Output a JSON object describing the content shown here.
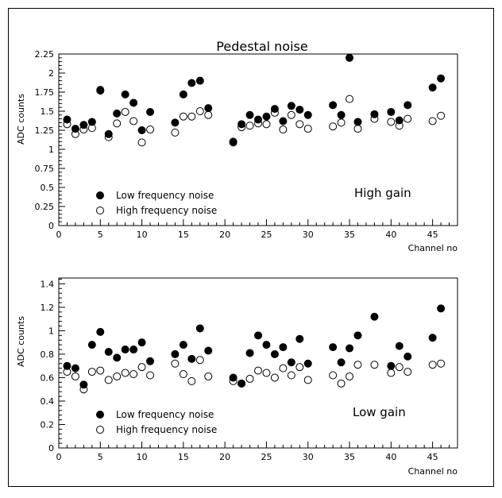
{
  "title": "Pedestal noise",
  "chart_data": [
    {
      "type": "scatter",
      "title": "Pedestal noise",
      "xlabel": "Channel no",
      "ylabel": "ADC counts",
      "xlim": [
        0,
        48
      ],
      "ylim": [
        0,
        2.25
      ],
      "xticks": [
        0,
        5,
        10,
        15,
        20,
        25,
        30,
        35,
        40,
        45
      ],
      "xtick_labels": [
        "0",
        "5",
        "10",
        "15",
        "20",
        "25",
        "30",
        "35",
        "40",
        "45"
      ],
      "yticks": [
        0,
        0.25,
        0.5,
        0.75,
        1,
        1.25,
        1.5,
        1.75,
        2,
        2.25
      ],
      "ytick_labels": [
        "0",
        "0.25",
        "0.5",
        "0.75",
        "1",
        "1.25",
        "1.5",
        "1.75",
        "2",
        "2.25"
      ],
      "annotation": "High gain",
      "legend_position": "bottom-left",
      "series": [
        {
          "name": "Low frequency noise",
          "marker": "filled-circle",
          "x": [
            1,
            2,
            3,
            4,
            5,
            6,
            7,
            8,
            9,
            10,
            11,
            14,
            15,
            16,
            17,
            18,
            21,
            22,
            23,
            24,
            25,
            26,
            27,
            28,
            29,
            30,
            33,
            34,
            35,
            36,
            38,
            40,
            41,
            42,
            45,
            46
          ],
          "y": [
            1.39,
            1.27,
            1.32,
            1.36,
            1.78,
            1.2,
            1.47,
            1.72,
            1.61,
            1.25,
            1.49,
            1.35,
            1.72,
            1.87,
            1.9,
            1.54,
            1.1,
            1.33,
            1.45,
            1.39,
            1.43,
            1.53,
            1.37,
            1.57,
            1.52,
            1.45,
            1.58,
            1.45,
            2.2,
            1.36,
            1.46,
            1.49,
            1.38,
            1.58,
            1.81,
            1.93
          ]
        },
        {
          "name": "High frequency noise",
          "marker": "open-circle",
          "x": [
            1,
            2,
            3,
            4,
            5,
            6,
            7,
            8,
            9,
            10,
            11,
            14,
            15,
            16,
            17,
            18,
            21,
            22,
            23,
            24,
            25,
            26,
            27,
            28,
            29,
            30,
            33,
            34,
            35,
            36,
            38,
            40,
            41,
            42,
            45,
            46
          ],
          "y": [
            1.33,
            1.2,
            1.26,
            1.28,
            1.77,
            1.16,
            1.34,
            1.49,
            1.37,
            1.09,
            1.26,
            1.22,
            1.43,
            1.43,
            1.5,
            1.45,
            1.09,
            1.29,
            1.31,
            1.34,
            1.33,
            1.48,
            1.26,
            1.45,
            1.33,
            1.27,
            1.3,
            1.35,
            1.66,
            1.27,
            1.4,
            1.36,
            1.31,
            1.4,
            1.37,
            1.44
          ]
        }
      ]
    },
    {
      "type": "scatter",
      "title": "",
      "xlabel": "Channel no",
      "ylabel": "ADC counts",
      "xlim": [
        0,
        48
      ],
      "ylim": [
        0,
        1.45
      ],
      "xticks": [
        0,
        5,
        10,
        15,
        20,
        25,
        30,
        35,
        40,
        45
      ],
      "xtick_labels": [
        "0",
        "5",
        "10",
        "15",
        "20",
        "25",
        "30",
        "35",
        "40",
        "45"
      ],
      "yticks": [
        0,
        0.2,
        0.4,
        0.6,
        0.8,
        1,
        1.2,
        1.4
      ],
      "ytick_labels": [
        "0",
        "0.2",
        "0.4",
        "0.6",
        "0.8",
        "1",
        "1.2",
        "1.4"
      ],
      "annotation": "Low gain",
      "legend_position": "bottom-left",
      "series": [
        {
          "name": "Low frequency noise",
          "marker": "filled-circle",
          "x": [
            1,
            2,
            3,
            4,
            5,
            6,
            7,
            8,
            9,
            10,
            11,
            14,
            15,
            16,
            17,
            18,
            21,
            22,
            23,
            24,
            25,
            26,
            27,
            28,
            29,
            30,
            33,
            34,
            35,
            36,
            38,
            40,
            41,
            42,
            45,
            46
          ],
          "y": [
            0.7,
            0.68,
            0.54,
            0.88,
            0.99,
            0.82,
            0.77,
            0.84,
            0.84,
            0.9,
            0.74,
            0.8,
            0.88,
            0.76,
            1.02,
            0.83,
            0.6,
            0.55,
            0.81,
            0.96,
            0.88,
            0.8,
            0.86,
            0.73,
            0.93,
            0.72,
            0.86,
            0.73,
            0.85,
            0.96,
            1.12,
            0.7,
            0.87,
            0.78,
            0.94,
            1.19
          ]
        },
        {
          "name": "High frequency noise",
          "marker": "open-circle",
          "x": [
            1,
            2,
            3,
            4,
            5,
            6,
            7,
            8,
            9,
            10,
            11,
            14,
            15,
            16,
            17,
            18,
            21,
            22,
            23,
            24,
            25,
            26,
            27,
            28,
            29,
            30,
            33,
            34,
            35,
            36,
            38,
            40,
            41,
            42,
            45,
            46
          ],
          "y": [
            0.65,
            0.61,
            0.5,
            0.65,
            0.66,
            0.58,
            0.61,
            0.64,
            0.63,
            0.69,
            0.62,
            0.72,
            0.63,
            0.57,
            0.75,
            0.61,
            0.57,
            0.55,
            0.59,
            0.66,
            0.64,
            0.6,
            0.68,
            0.62,
            0.69,
            0.58,
            0.62,
            0.55,
            0.61,
            0.71,
            0.71,
            0.64,
            0.69,
            0.65,
            0.71,
            0.72
          ]
        }
      ]
    }
  ]
}
